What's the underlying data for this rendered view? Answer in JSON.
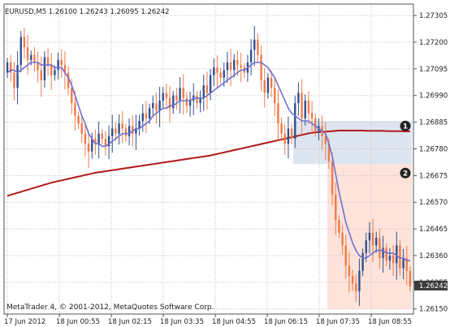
{
  "window": {
    "header_text": "EURUSD,M5  1.26100 1.26243 1.26095 1.26242",
    "copyright": "MetaTrader 4, © 2001-2012, MetaQuotes Software Corp."
  },
  "colors": {
    "bull": "#2f4f8f",
    "bear": "#f07a4a",
    "ma_fast": "#7070d0",
    "ma_slow": "#b01818",
    "grid": "#bdbdbd",
    "zone1": "#dde6f0",
    "zone2": "#fde3da",
    "price_tag_bg": "#3a3a3a"
  },
  "markers": {
    "marker1": "1",
    "marker2": "2"
  },
  "chart_data": {
    "type": "candlestick",
    "symbol": "EURUSD",
    "timeframe": "M5",
    "ylim": [
      1.2615,
      1.273
    ],
    "y_ticks": [
      "1.27305",
      "1.27200",
      "1.27095",
      "1.26990",
      "1.26885",
      "1.26780",
      "1.26675",
      "1.26570",
      "1.26465",
      "1.26360",
      "1.26255",
      "1.26150"
    ],
    "x_ticks": [
      "17 Jun 2012",
      "18 Jun 00:55",
      "18 Jun 02:15",
      "18 Jun 03:35",
      "18 Jun 04:55",
      "18 Jun 06:15",
      "18 Jun 07:35",
      "18 Jun 08:55"
    ],
    "last_price": "1.26242",
    "close": [
      1.2712,
      1.2708,
      1.2702,
      1.2711,
      1.2722,
      1.2718,
      1.2713,
      1.2715,
      1.2712,
      1.2709,
      1.2705,
      1.2714,
      1.2711,
      1.2707,
      1.2709,
      1.2713,
      1.2711,
      1.2708,
      1.2702,
      1.2696,
      1.2691,
      1.2688,
      1.2684,
      1.268,
      1.2677,
      1.2682,
      1.268,
      1.2684,
      1.2682,
      1.2679,
      1.2683,
      1.2686,
      1.2684,
      1.2688,
      1.2686,
      1.2683,
      1.2687,
      1.2684,
      1.2686,
      1.2689,
      1.2692,
      1.269,
      1.2694,
      1.2696,
      1.2693,
      1.2697,
      1.27,
      1.2698,
      1.2694,
      1.2699,
      1.2697,
      1.2702,
      1.2698,
      1.2695,
      1.2697,
      1.2699,
      1.2696,
      1.2698,
      1.2703,
      1.27,
      1.2707,
      1.271,
      1.2708,
      1.2706,
      1.2709,
      1.2712,
      1.2709,
      1.2713,
      1.2711,
      1.271,
      1.2708,
      1.2712,
      1.2717,
      1.2721,
      1.2715,
      1.2705,
      1.27,
      1.2706,
      1.2702,
      1.2696,
      1.2688,
      1.2684,
      1.268,
      1.2686,
      1.2682,
      1.2696,
      1.27,
      1.269,
      1.2697,
      1.2692,
      1.269,
      1.2685,
      1.2687,
      1.2683,
      1.268,
      1.2673,
      1.266,
      1.265,
      1.2645,
      1.264,
      1.2632,
      1.2628,
      1.2625,
      1.2622,
      1.263,
      1.2637,
      1.2642,
      1.2645,
      1.264,
      1.2643,
      1.2635,
      1.2639,
      1.2634,
      1.2636,
      1.2633,
      1.264,
      1.2631,
      1.2635,
      1.263,
      1.2624
    ],
    "ma_fast": [
      1.2708,
      1.2709,
      1.2709,
      1.2708,
      1.2709,
      1.271,
      1.2711,
      1.2712,
      1.2712,
      1.2712,
      1.2711,
      1.2711,
      1.2711,
      1.2711,
      1.271,
      1.271,
      1.271,
      1.2708,
      1.2706,
      1.2703,
      1.2699,
      1.2695,
      1.2691,
      1.2688,
      1.2684,
      1.2682,
      1.268,
      1.268,
      1.2679,
      1.2679,
      1.268,
      1.2681,
      1.2682,
      1.2683,
      1.2684,
      1.2684,
      1.2684,
      1.2685,
      1.2686,
      1.2686,
      1.2687,
      1.2688,
      1.2689,
      1.2691,
      1.2692,
      1.2693,
      1.2694,
      1.2694,
      1.2695,
      1.2695,
      1.2696,
      1.2697,
      1.2697,
      1.2697,
      1.2697,
      1.2698,
      1.2698,
      1.2698,
      1.2698,
      1.2699,
      1.27,
      1.2701,
      1.2702,
      1.2703,
      1.2704,
      1.2705,
      1.2706,
      1.2707,
      1.2708,
      1.2709,
      1.2709,
      1.271,
      1.2711,
      1.2712,
      1.2712,
      1.2712,
      1.2711,
      1.271,
      1.2708,
      1.2706,
      1.2703,
      1.27,
      1.2697,
      1.2694,
      1.2692,
      1.2691,
      1.269,
      1.2689,
      1.2689,
      1.2689,
      1.2688,
      1.2687,
      1.2686,
      1.2685,
      1.2684,
      1.268,
      1.2675,
      1.2668,
      1.2661,
      1.2655,
      1.2649,
      1.2645,
      1.2641,
      1.2638,
      1.2636,
      1.2635,
      1.2635,
      1.2636,
      1.2637,
      1.2638,
      1.2638,
      1.2638,
      1.2637,
      1.2637,
      1.2637,
      1.2636,
      1.2635,
      1.2635,
      1.2634,
      1.2634
    ],
    "ma_slow": [
      1.26595,
      1.26599,
      1.26603,
      1.26607,
      1.26611,
      1.26615,
      1.26619,
      1.26623,
      1.26627,
      1.26631,
      1.26635,
      1.26639,
      1.26643,
      1.26647,
      1.2665,
      1.26653,
      1.26656,
      1.26659,
      1.26662,
      1.26665,
      1.26668,
      1.26671,
      1.26674,
      1.26677,
      1.2668,
      1.26683,
      1.26686,
      1.26688,
      1.2669,
      1.26692,
      1.26694,
      1.26696,
      1.26698,
      1.267,
      1.26702,
      1.26704,
      1.26706,
      1.26708,
      1.2671,
      1.26712,
      1.26714,
      1.26716,
      1.26718,
      1.2672,
      1.26722,
      1.26724,
      1.26726,
      1.26728,
      1.2673,
      1.26732,
      1.26734,
      1.26736,
      1.26738,
      1.2674,
      1.26742,
      1.26744,
      1.26746,
      1.26748,
      1.2675,
      1.26752,
      1.26754,
      1.26757,
      1.2676,
      1.26763,
      1.26766,
      1.26769,
      1.26772,
      1.26775,
      1.26778,
      1.26781,
      1.26784,
      1.26787,
      1.2679,
      1.26793,
      1.26796,
      1.26799,
      1.26802,
      1.26805,
      1.26808,
      1.26811,
      1.26814,
      1.26817,
      1.2682,
      1.26823,
      1.26826,
      1.26829,
      1.26832,
      1.26835,
      1.26838,
      1.26841,
      1.26843,
      1.26845,
      1.26846,
      1.26847,
      1.26848,
      1.26849,
      1.2685,
      1.26851,
      1.26852,
      1.26852,
      1.26852,
      1.26852,
      1.26852,
      1.26852,
      1.26852,
      1.26852,
      1.26851,
      1.26851,
      1.26851,
      1.26851,
      1.26851,
      1.26851,
      1.2685,
      1.2685,
      1.2685,
      1.2685,
      1.2685,
      1.26849,
      1.26849,
      1.26849
    ],
    "zones": [
      {
        "label": "1",
        "from_bar": 85,
        "to_bar": 119,
        "y_top": 1.2689,
        "y_bottom": 1.2672
      },
      {
        "label": "2",
        "from_bar": 95,
        "to_bar": 119,
        "y_top": 1.2672,
        "y_bottom": 1.2615
      }
    ],
    "grid": true
  }
}
